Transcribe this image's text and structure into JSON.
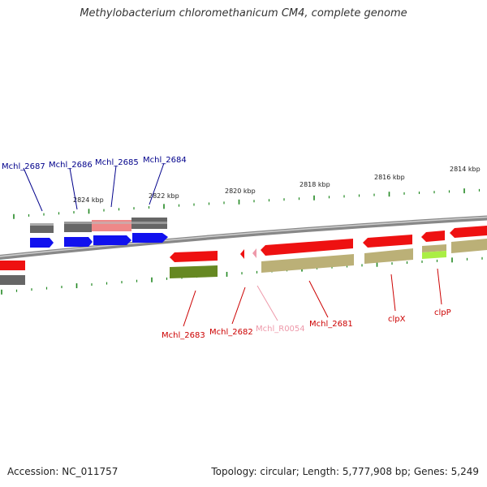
{
  "title": "Methylobacterium chloromethanicum CM4, complete genome",
  "accession": "Accession: NC_011757",
  "summary": "Topology: circular; Length: 5,777,908 bp; Genes: 5,249",
  "colors": {
    "backbone": "#777777",
    "tick": "#228822",
    "tick_label": "#222222",
    "gene_red": "#ee1111",
    "gene_blue": "#1111ee",
    "gene_pink": "#ee99aa",
    "gene_gray": "#666666",
    "olive_dark": "#668822",
    "khaki": "#bbb077",
    "lime": "#aaee44",
    "pink_bar": "#ee8888",
    "label_blue": "#00008b",
    "label_red": "#cc0000",
    "label_pink": "#ee99aa"
  },
  "scale_labels": [
    "2824 kbp",
    "2822 kbp",
    "2820 kbp",
    "2818 kbp",
    "2816 kbp",
    "2814 kbp"
  ],
  "gene_labels": {
    "g2687": "Mchl_2687",
    "g2686": "Mchl_2686",
    "g2685": "Mchl_2685",
    "g2684": "Mchl_2684",
    "g2683": "Mchl_2683",
    "g2682": "Mchl_2682",
    "gR0054": "Mchl_R0054",
    "g2681": "Mchl_2681",
    "clpX": "clpX",
    "clpP": "clpP"
  }
}
